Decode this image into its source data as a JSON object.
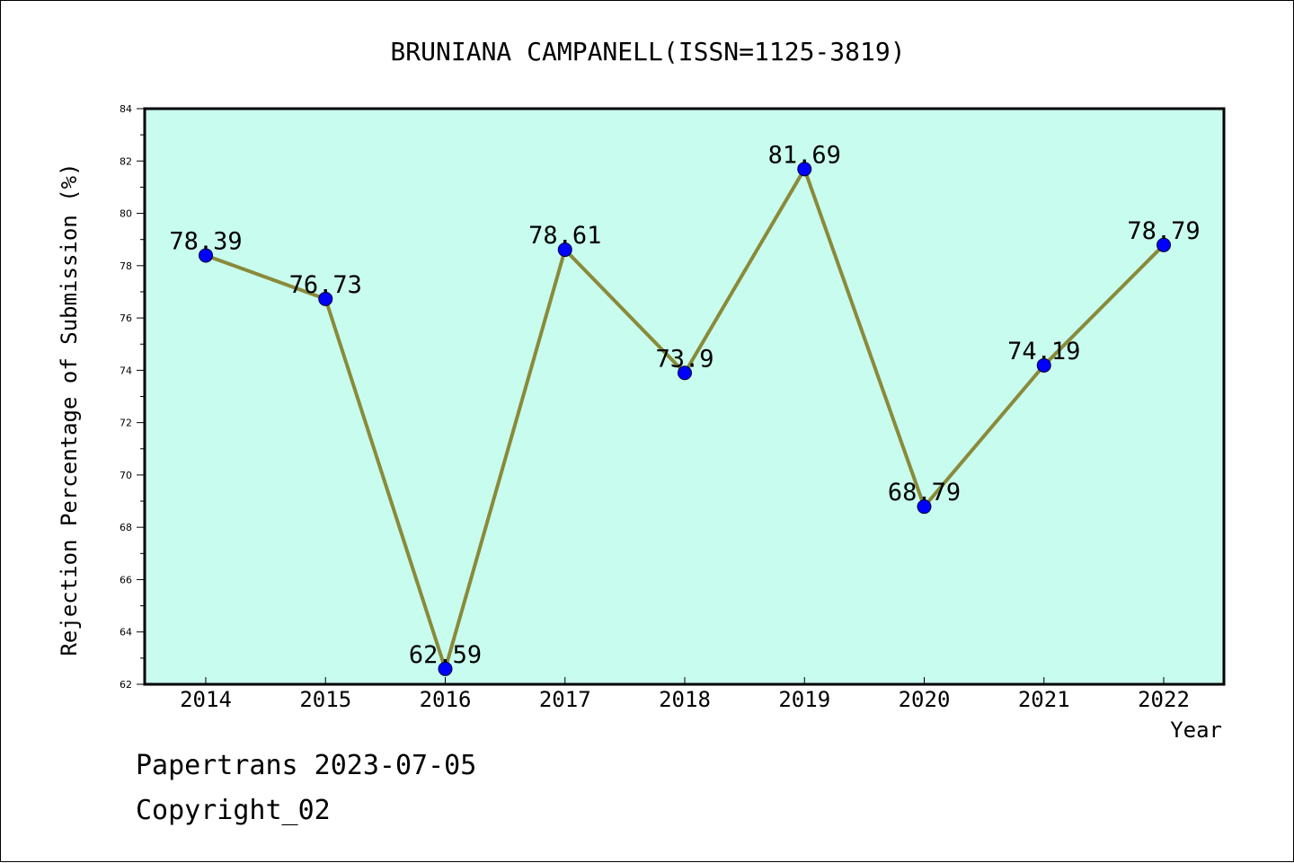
{
  "chart_data": {
    "type": "line",
    "title": "BRUNIANA CAMPANELL(ISSN=1125-3819)",
    "xlabel": "Year",
    "ylabel": "Rejection Percentage of Submission (%)",
    "categories": [
      "2014",
      "2015",
      "2016",
      "2017",
      "2018",
      "2019",
      "2020",
      "2021",
      "2022"
    ],
    "series": [
      {
        "values": [
          78.39,
          76.73,
          62.59,
          78.61,
          73.9,
          81.69,
          68.79,
          74.19,
          78.79
        ],
        "labels": [
          "78.39",
          "76.73",
          "62.59",
          "78.61",
          "73.9",
          "81.69",
          "68.79",
          "74.19",
          "78.79"
        ]
      }
    ],
    "ylim": [
      62,
      84
    ],
    "yticks": [
      "62",
      "64",
      "66",
      "68",
      "70",
      "72",
      "74",
      "76",
      "78",
      "80",
      "82",
      "84"
    ],
    "grid": false,
    "colors": {
      "plot_background": "#c8fcee",
      "line": "#8a8a3a",
      "marker": "#0000ff"
    }
  },
  "footer": {
    "line1": "Papertrans 2023-07-05",
    "line2": "Copyright_02"
  }
}
